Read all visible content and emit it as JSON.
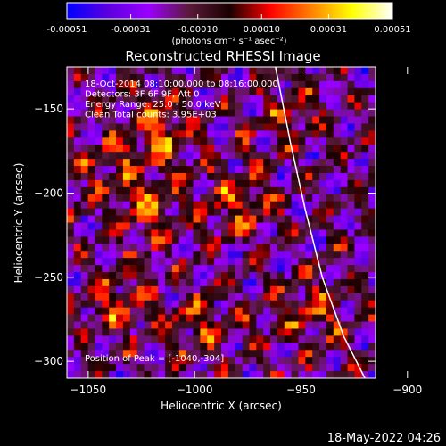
{
  "colorbar": {
    "tick_labels": [
      "-0.00051",
      "-0.00031",
      "-0.00010",
      "0.00010",
      "0.00031",
      "0.00051"
    ],
    "tick_values": [
      -0.00051,
      -0.00031,
      -0.0001,
      0.0001,
      0.00031,
      0.00051
    ],
    "range": [
      -0.00051,
      0.00051
    ],
    "unit_label": "(photons cm⁻² s⁻¹ asec⁻²)"
  },
  "chart_data": {
    "type": "heatmap",
    "title": "Reconstructed RHESSI Image",
    "xlabel": "Heliocentric X (arcsec)",
    "ylabel": "Heliocentric Y (arcsec)",
    "xlim": [
      -1060,
      -915
    ],
    "ylim": [
      -310,
      -125
    ],
    "x_ticks": [
      -1050,
      -1000,
      -950,
      -900
    ],
    "x_tick_labels": [
      "−1050",
      "−1000",
      "−950",
      "−900"
    ],
    "y_ticks": [
      -300,
      -250,
      -200,
      -150
    ],
    "y_tick_labels": [
      "−300",
      "−250",
      "−200",
      "−150"
    ],
    "info_lines": [
      "18-Oct-2014 08:10:00.000 to 08:16:00.000",
      "Detectors: 3F 6F 9F, Att 0",
      "Energy Range: 25.0 - 50.0 keV",
      "Clean     Total counts: 3.95E+03"
    ],
    "peak_text": "Position of Peak = [-1040,-304]",
    "peak_position": [
      -1040,
      -304
    ],
    "limb_curve": [
      [
        -962,
        -125
      ],
      [
        -955,
        -170
      ],
      [
        -948,
        -210
      ],
      [
        -940,
        -250
      ],
      [
        -930,
        -285
      ],
      [
        -920,
        -310
      ]
    ],
    "limb_color": "#ffffff",
    "colormap": [
      "#0000ff",
      "#5a00e0",
      "#9a00ff",
      "#5a1a3a",
      "#1a0000",
      "#ff0000",
      "#ff8000",
      "#ffff00",
      "#ffffff"
    ]
  },
  "timestamp": "18-May-2022 04:26"
}
